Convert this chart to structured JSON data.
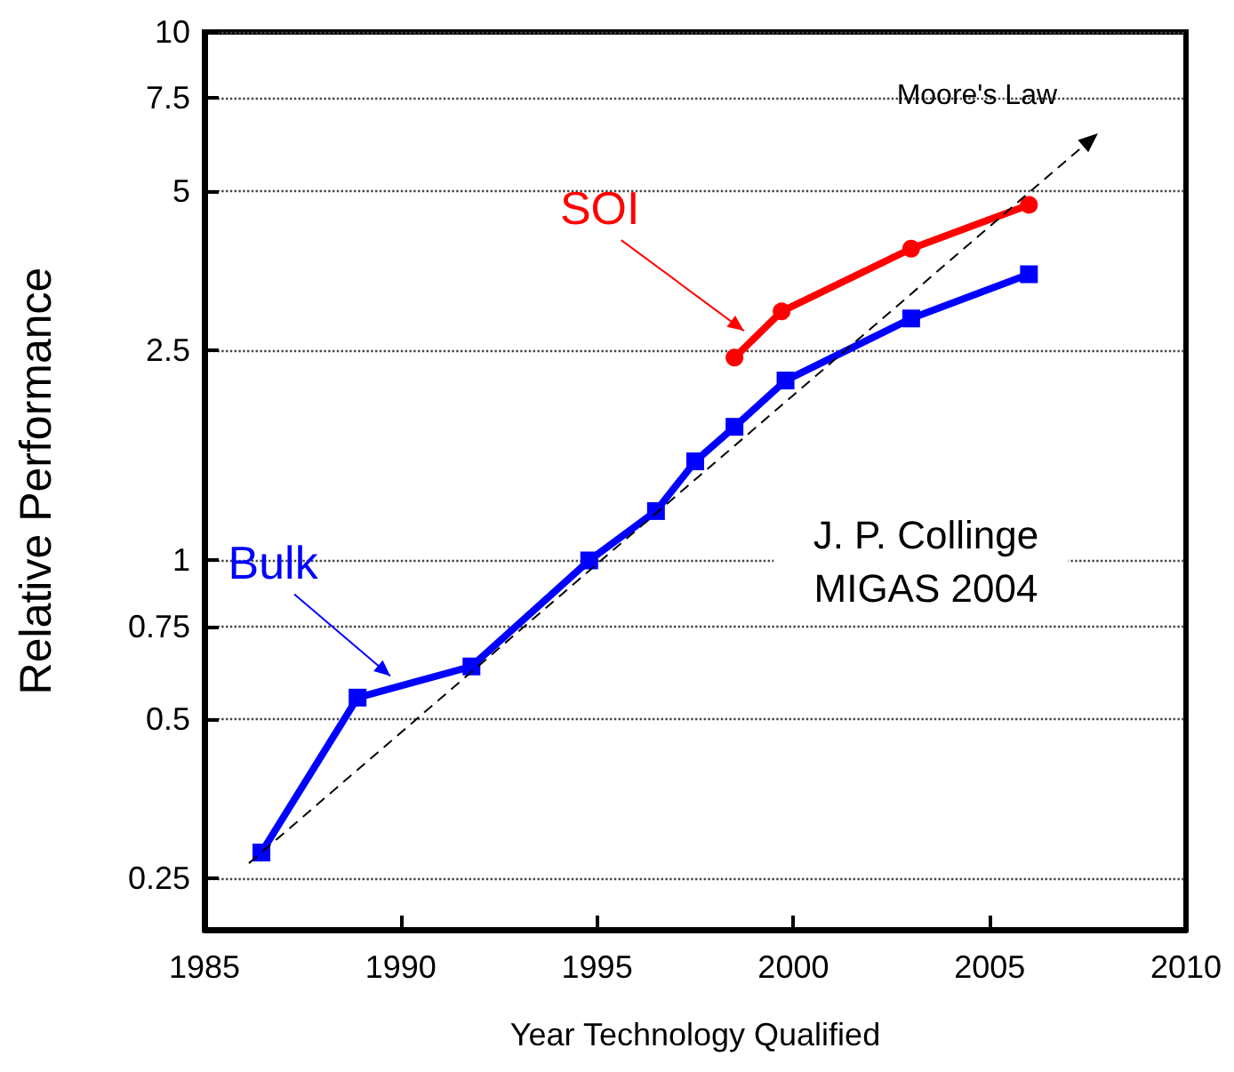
{
  "chart_data": {
    "type": "line",
    "xlabel": "Year Technology Qualified",
    "ylabel": "Relative Performance",
    "log": "y",
    "grid": "y",
    "legend": false,
    "xlim": [
      1985,
      2010
    ],
    "xticks": [
      1985,
      1990,
      1995,
      2000,
      2005,
      2010
    ],
    "ylim": [
      0.2,
      10
    ],
    "yticks": [
      0.25,
      0.5,
      0.75,
      1,
      2.5,
      5,
      7.5,
      10
    ],
    "series": [
      {
        "name": "Bulk",
        "color": "#0000ff",
        "marker": "square",
        "line_style": "solid",
        "x": [
          1986.45,
          1988.9,
          1991.8,
          1994.8,
          1996.5,
          1997.5,
          1998.5,
          1999.8,
          2003.0,
          2006.0
        ],
        "values": [
          0.28,
          0.55,
          0.63,
          1.0,
          1.24,
          1.54,
          1.79,
          2.19,
          2.87,
          3.48
        ]
      },
      {
        "name": "SOI",
        "color": "#ff0000",
        "marker": "circle",
        "line_style": "solid",
        "x": [
          1998.5,
          1999.7,
          2003.0,
          2006.0
        ],
        "values": [
          2.42,
          2.96,
          3.89,
          4.71
        ]
      }
    ],
    "annotations": [
      "Moore's Law",
      "J. P. Collinge\nMIGAS 2004"
    ]
  }
}
